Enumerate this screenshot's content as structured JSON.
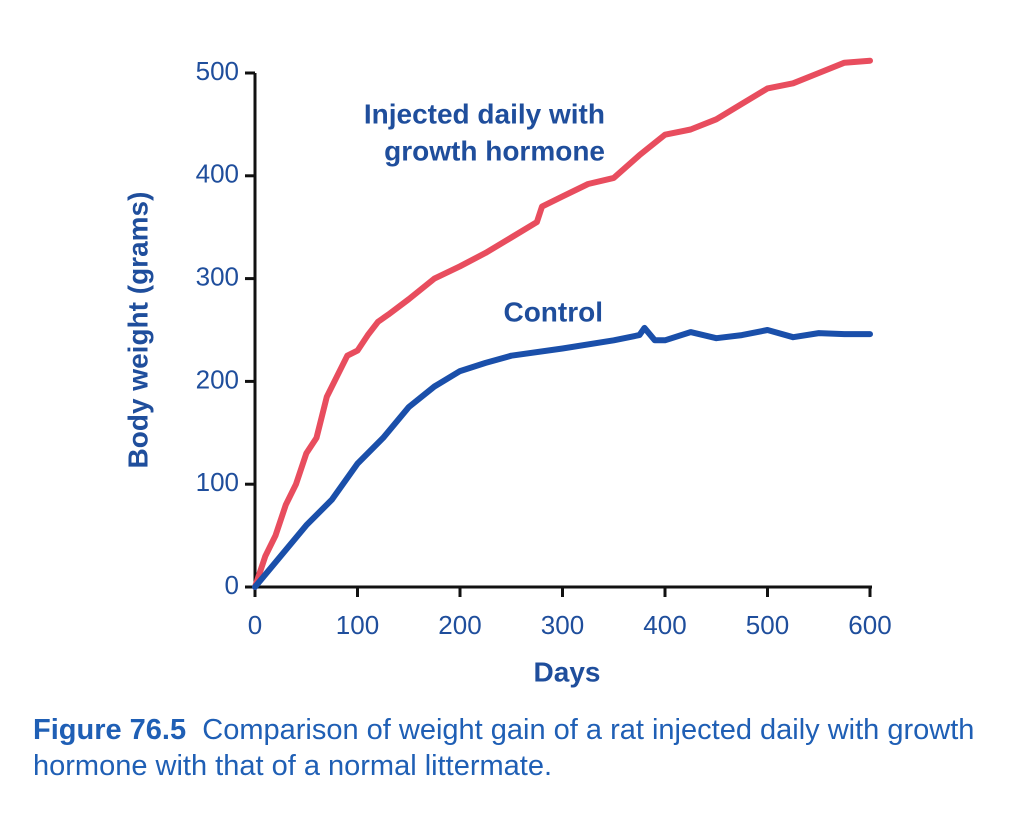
{
  "chart_data": {
    "type": "line",
    "x_label": "Days",
    "y_label": "Body weight (grams)",
    "xlim": [
      0,
      600
    ],
    "ylim": [
      0,
      500
    ],
    "xticks": [
      0,
      100,
      200,
      300,
      400,
      500,
      600
    ],
    "yticks": [
      0,
      100,
      200,
      300,
      400,
      500
    ],
    "series": [
      {
        "name": "Injected daily with growth hormone",
        "color": "#e84d5e",
        "x": [
          0,
          10,
          20,
          30,
          40,
          50,
          60,
          70,
          80,
          90,
          100,
          110,
          120,
          130,
          150,
          175,
          200,
          225,
          250,
          275,
          280,
          300,
          325,
          350,
          375,
          400,
          425,
          450,
          475,
          500,
          525,
          550,
          575,
          600
        ],
        "values": [
          0,
          30,
          50,
          80,
          100,
          130,
          145,
          185,
          205,
          225,
          230,
          245,
          258,
          265,
          280,
          300,
          312,
          325,
          340,
          355,
          370,
          380,
          392,
          398,
          420,
          440,
          445,
          455,
          470,
          485,
          490,
          500,
          510,
          512
        ]
      },
      {
        "name": "Control",
        "color": "#1a4faa",
        "x": [
          0,
          25,
          50,
          75,
          100,
          125,
          150,
          175,
          200,
          225,
          250,
          300,
          350,
          375,
          380,
          390,
          400,
          425,
          450,
          475,
          500,
          525,
          550,
          575,
          600
        ],
        "values": [
          0,
          30,
          60,
          85,
          120,
          145,
          175,
          195,
          210,
          218,
          225,
          232,
          240,
          245,
          252,
          240,
          240,
          248,
          242,
          245,
          250,
          243,
          247,
          246,
          246
        ]
      }
    ],
    "annotations": [
      {
        "lines": [
          "Injected daily with",
          "growth hormone"
        ]
      },
      {
        "lines": [
          "Control"
        ]
      }
    ],
    "caption_label": "Figure 76.5",
    "caption_text": "Comparison of weight gain of a rat injected daily with growth hormone with that of a normal littermate."
  }
}
